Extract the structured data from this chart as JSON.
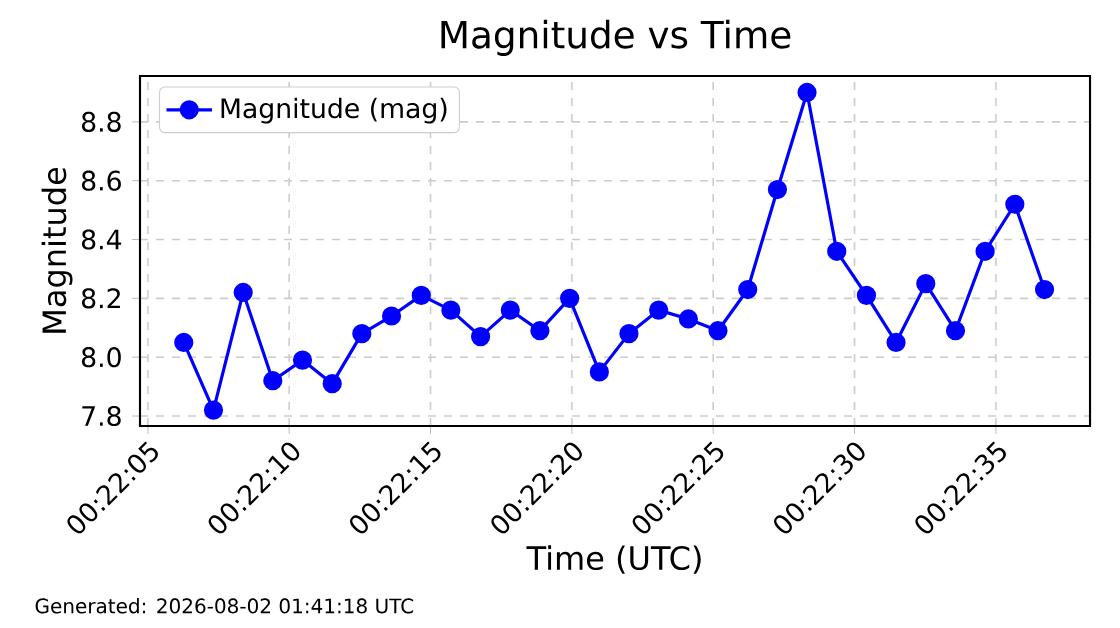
{
  "chart_data": {
    "type": "line",
    "title": "Magnitude vs Time",
    "xlabel": "Time (UTC)",
    "ylabel": "Magnitude",
    "annotations": [
      "Generated: 2026-08-02 01:41:18 UTC"
    ],
    "x": [
      0.368408,
      0.3687,
      0.368992,
      0.369283,
      0.369575,
      0.369867,
      0.370158,
      0.37045,
      0.370742,
      0.371033,
      0.371325,
      0.371617,
      0.371908,
      0.3722,
      0.372492,
      0.372783,
      0.373075,
      0.373367,
      0.373658,
      0.37395,
      0.374242,
      0.374533,
      0.374825,
      0.375117,
      0.375408,
      0.3757,
      0.375992,
      0.376283,
      0.376575,
      0.376867
    ],
    "series": [
      {
        "name": "Magnitude (mag)",
        "color": "#0000ff",
        "values": [
          8.05,
          7.82,
          8.22,
          7.92,
          7.99,
          7.91,
          8.08,
          8.14,
          8.21,
          8.16,
          8.07,
          8.16,
          8.09,
          8.2,
          7.95,
          8.08,
          8.16,
          8.13,
          8.09,
          8.23,
          8.57,
          8.9,
          8.36,
          8.21,
          8.05,
          8.25,
          8.09,
          8.36,
          8.52,
          8.23
        ]
      }
    ],
    "xlim": [
      0.367978,
      0.377314
    ],
    "ylim": [
      7.766,
      8.956
    ],
    "xticks": [
      {
        "value": 0.368056,
        "label": "00:22:05"
      },
      {
        "value": 0.369444,
        "label": "00:22:10"
      },
      {
        "value": 0.370833,
        "label": "00:22:15"
      },
      {
        "value": 0.372222,
        "label": "00:22:20"
      },
      {
        "value": 0.373611,
        "label": "00:22:25"
      },
      {
        "value": 0.375,
        "label": "00:22:30"
      },
      {
        "value": 0.376389,
        "label": "00:22:35"
      }
    ],
    "yticks": [
      7.8,
      {
        "value": 8,
        "label": "8.0"
      },
      8.2,
      8.4,
      8.6,
      8.8
    ],
    "grid": true,
    "legend": "top left",
    "marker": "circle",
    "line_style": "solid"
  }
}
